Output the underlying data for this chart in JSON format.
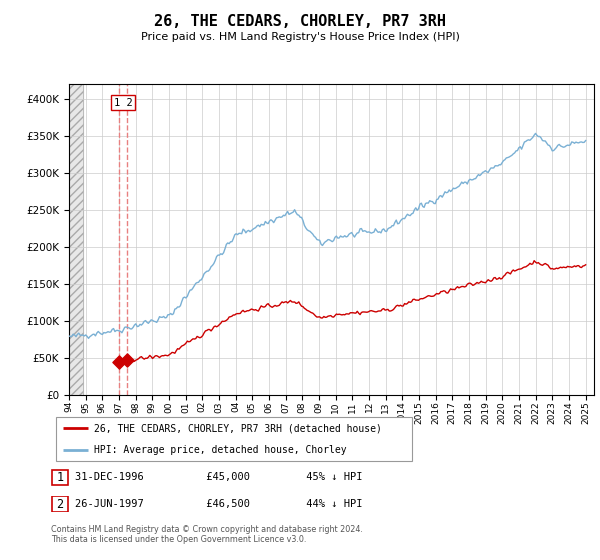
{
  "title": "26, THE CEDARS, CHORLEY, PR7 3RH",
  "subtitle": "Price paid vs. HM Land Registry's House Price Index (HPI)",
  "legend_label_red": "26, THE CEDARS, CHORLEY, PR7 3RH (detached house)",
  "legend_label_blue": "HPI: Average price, detached house, Chorley",
  "footer": "Contains HM Land Registry data © Crown copyright and database right 2024.\nThis data is licensed under the Open Government Licence v3.0.",
  "table_rows": [
    {
      "num": "1",
      "date": "31-DEC-1996",
      "price": "£45,000",
      "hpi": "45% ↓ HPI"
    },
    {
      "num": "2",
      "date": "26-JUN-1997",
      "price": "£46,500",
      "hpi": "44% ↓ HPI"
    }
  ],
  "sale1_year": 1996.99,
  "sale1_price": 45000,
  "sale2_year": 1997.49,
  "sale2_price": 46500,
  "hpi_color": "#7ab0d4",
  "price_color": "#cc0000",
  "dashed_line_color": "#e88080",
  "ylim": [
    0,
    420000
  ],
  "xlim_start": 1994.0,
  "xlim_end": 2025.5,
  "yticks": [
    0,
    50000,
    100000,
    150000,
    200000,
    250000,
    300000,
    350000,
    400000
  ],
  "xtick_years": [
    1994,
    1995,
    1996,
    1997,
    1998,
    1999,
    2000,
    2001,
    2002,
    2003,
    2004,
    2005,
    2006,
    2007,
    2008,
    2009,
    2010,
    2011,
    2012,
    2013,
    2014,
    2015,
    2016,
    2017,
    2018,
    2019,
    2020,
    2021,
    2022,
    2023,
    2024,
    2025
  ],
  "xtick_labels": [
    "94",
    "95",
    "96",
    "97",
    "98",
    "99",
    "00",
    "01",
    "02",
    "03",
    "04",
    "05",
    "06",
    "07",
    "08",
    "09",
    "10",
    "11",
    "12",
    "13",
    "2014",
    "2015",
    "2016",
    "2017",
    "2018",
    "2019",
    "2020",
    "2021",
    "2022",
    "2023",
    "2024",
    "2025"
  ]
}
